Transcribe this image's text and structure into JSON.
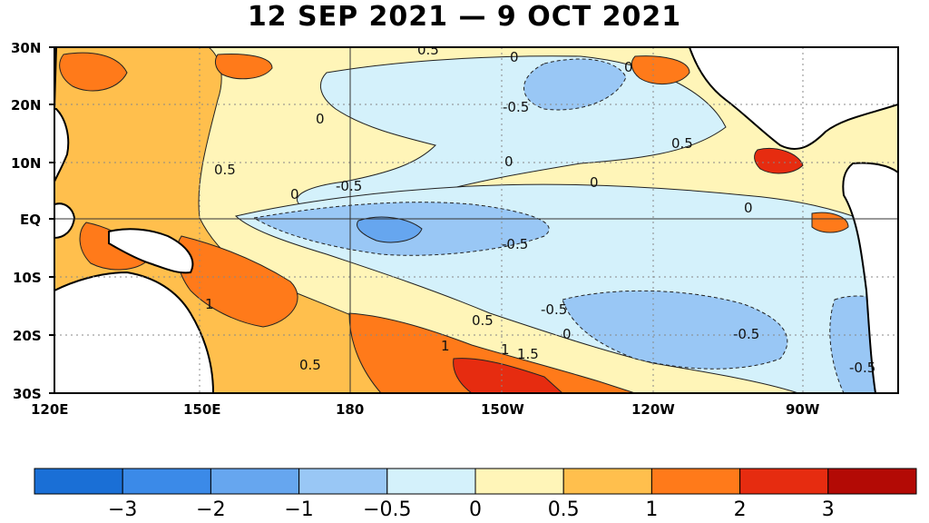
{
  "title": "12 SEP 2021 — 9 OCT 2021",
  "map": {
    "lat_labels": [
      "30N",
      "20N",
      "10N",
      "EQ",
      "10S",
      "20S",
      "30S"
    ],
    "lon_labels": [
      "120E",
      "150E",
      "180",
      "150W",
      "120W",
      "90W"
    ],
    "contour_labels": [
      {
        "text": "0.5"
      },
      {
        "text": "0"
      },
      {
        "text": "0"
      },
      {
        "text": "-0.5"
      },
      {
        "text": "0.5"
      },
      {
        "text": "0.5"
      },
      {
        "text": "0"
      },
      {
        "text": "-0.5"
      },
      {
        "text": "0"
      },
      {
        "text": "-0.5"
      },
      {
        "text": "0"
      },
      {
        "text": "1"
      },
      {
        "text": "0.5"
      },
      {
        "text": "-0.5"
      },
      {
        "text": "1"
      },
      {
        "text": "1"
      },
      {
        "text": "1.5"
      },
      {
        "text": "0"
      },
      {
        "text": "-0.5"
      },
      {
        "text": "0.5"
      },
      {
        "text": "-0.5"
      },
      {
        "text": "0"
      },
      {
        "text": "0"
      }
    ]
  },
  "colorbar": {
    "colors": [
      "#1a6fd6",
      "#3b8ae8",
      "#66a6ef",
      "#99c7f5",
      "#d4f1fb",
      "#fff5b8",
      "#ffbf4d",
      "#ff7a1a",
      "#e62c10",
      "#b30a05"
    ],
    "tick_labels": [
      "−3",
      "−2",
      "−1",
      "−0.5",
      "0",
      "0.5",
      "1",
      "2",
      "3"
    ]
  }
}
